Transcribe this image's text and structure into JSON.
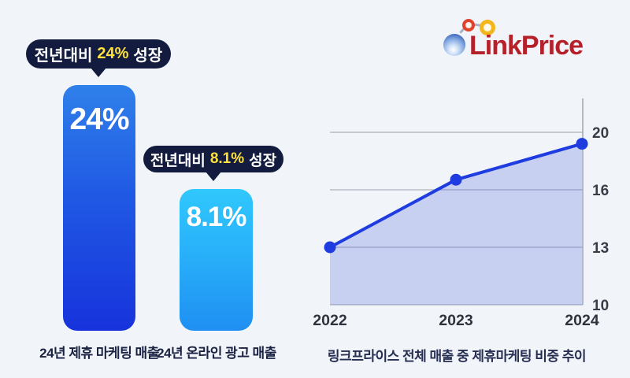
{
  "logo": {
    "text": "LinkPrice"
  },
  "bars_section": {
    "bars": [
      {
        "callout": {
          "prefix": "전년대비",
          "value": "24%",
          "suffix": "성장"
        },
        "bar_value": "24%",
        "label": "24년 제휴 마케팅 매출"
      },
      {
        "callout": {
          "prefix": "전년대비",
          "value": "8.1%",
          "suffix": "성장"
        },
        "bar_value": "8.1%",
        "label": "24년 온라인 광고 매출"
      }
    ]
  },
  "chart_data": {
    "type": "line",
    "title": "링크프라이스 전체 매출 중 제휴마케팅 비중 추이",
    "x": [
      "2022",
      "2023",
      "2024"
    ],
    "values": [
      13,
      16.7,
      19.2
    ],
    "y_ticks": [
      10,
      13,
      16,
      20
    ],
    "ylim": [
      10,
      20
    ],
    "grid": true,
    "legend": "none",
    "axis_side": "right",
    "line_color": "#1e3ce0",
    "area_color": "rgba(80,100,225,0.25)"
  },
  "colors": {
    "background": "#f1f4f8",
    "callout_bubble": "#131c3e",
    "callout_accent_yellow": "#ffe13e",
    "bar1_gradient_top": "#2f80ea",
    "bar1_gradient_bottom": "#1733dc",
    "bar2_gradient_top": "#30c8fd",
    "bar2_gradient_bottom": "#1f8ff2",
    "label_navy": "#1a2243",
    "logo_red": "#b5202a"
  }
}
